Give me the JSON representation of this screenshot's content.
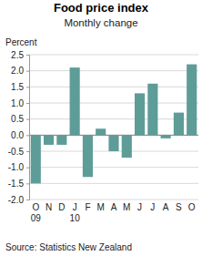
{
  "chart_data": {
    "type": "bar",
    "title": "Food price index",
    "subtitle": "Monthly change",
    "y_label": "Percent",
    "source": "Source: Statistics New Zealand",
    "categories": [
      "O\n09",
      "N",
      "D",
      "J\n10",
      "F",
      "M",
      "A",
      "M",
      "J",
      "J",
      "A",
      "S",
      "O"
    ],
    "values": [
      -1.5,
      -0.3,
      -0.3,
      2.1,
      -1.3,
      0.2,
      -0.5,
      -0.7,
      1.3,
      1.6,
      -0.1,
      0.7,
      2.2
    ],
    "color": "#5e9c98",
    "ylim": [
      -2.0,
      2.5
    ],
    "yticks": [
      {
        "value": -2.0,
        "label": "-2.0"
      },
      -1.5,
      {
        "value": -1.0,
        "label": "-1.0"
      },
      -0.5,
      {
        "value": 0.0,
        "label": "0.0"
      },
      0.5,
      {
        "value": 1.0,
        "label": "1.0"
      },
      1.5,
      {
        "value": 2.0,
        "label": "2.0"
      },
      2.5
    ],
    "grid": true
  }
}
